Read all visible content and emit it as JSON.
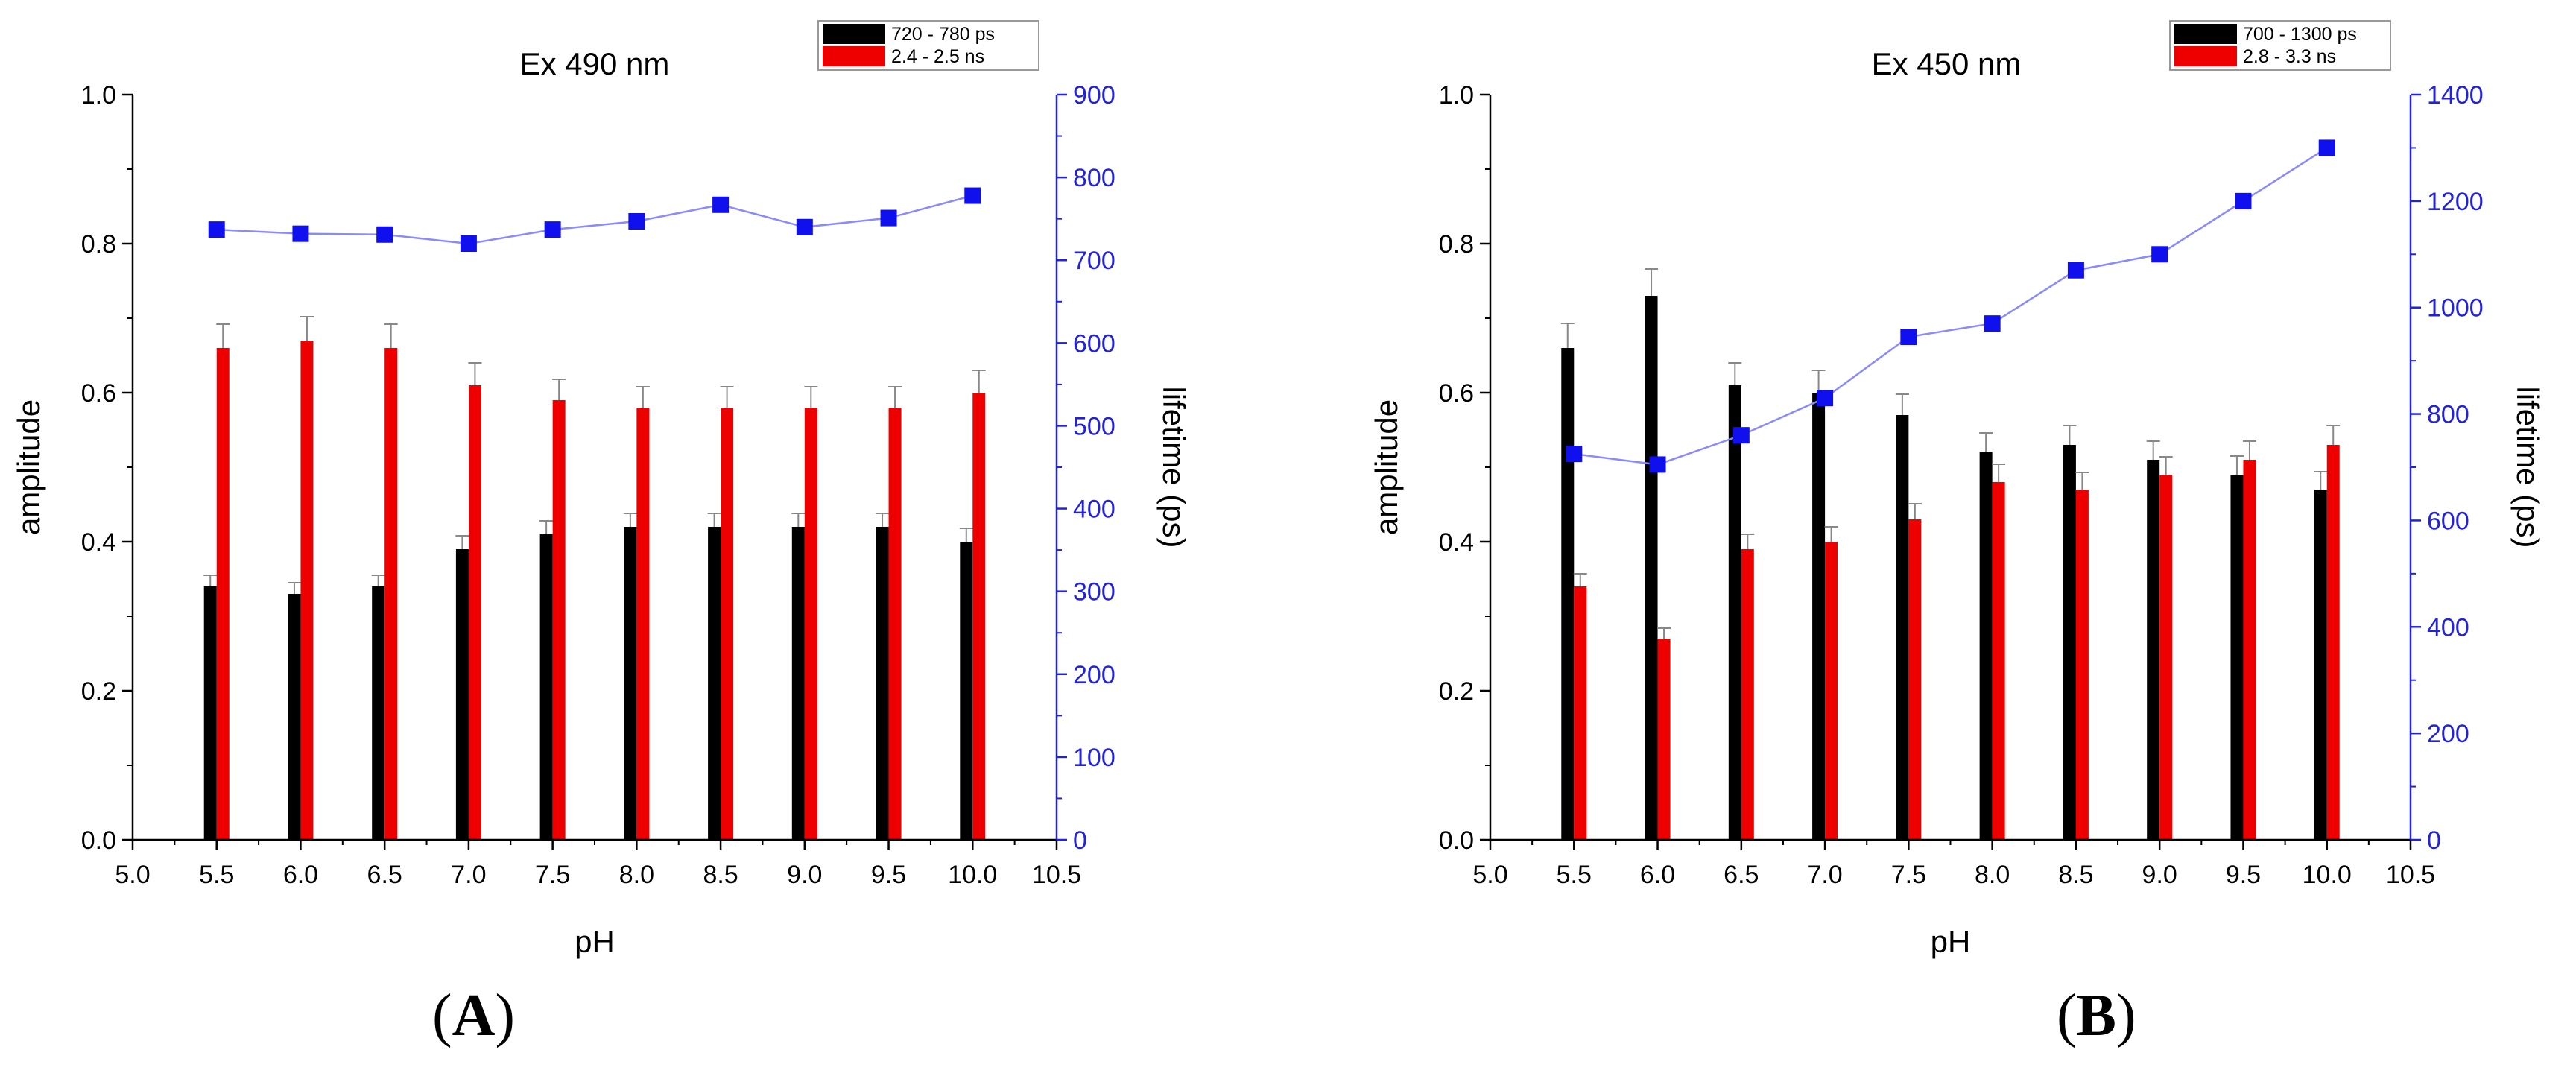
{
  "colors": {
    "short": "#000000",
    "long": "#ee0000",
    "lifetime_marker": "#1010ee",
    "lifetime_line": "#8a8aff",
    "right_axis": "#2222dd",
    "error_bar": "#888888"
  },
  "chart_data": [
    {
      "type": "bar",
      "panel_label": "A",
      "title": "Ex 490 nm",
      "xlabel": "pH",
      "ylabel": "amplitude",
      "y2label": "lifetime (ps)",
      "xlim": [
        5.0,
        10.5
      ],
      "xticks": [
        "5.0",
        "5.5",
        "6.0",
        "6.5",
        "7.0",
        "7.5",
        "8.0",
        "8.5",
        "9.0",
        "9.5",
        "10.0",
        "10.5"
      ],
      "ylim": [
        0.0,
        1.0
      ],
      "yticks": [
        "0.0",
        "0.2",
        "0.4",
        "0.6",
        "0.8",
        "1.0"
      ],
      "y2lim": [
        0,
        900
      ],
      "y2ticks": [
        "0",
        "100",
        "200",
        "300",
        "400",
        "500",
        "600",
        "700",
        "800",
        "900"
      ],
      "x": [
        5.5,
        6.0,
        6.5,
        7.0,
        7.5,
        8.0,
        8.5,
        9.0,
        9.5,
        10.0
      ],
      "series": [
        {
          "name": "720 - 780 ps",
          "key": "short",
          "values": [
            0.34,
            0.33,
            0.34,
            0.39,
            0.41,
            0.42,
            0.42,
            0.42,
            0.42,
            0.4
          ],
          "errors": [
            0.015,
            0.015,
            0.015,
            0.018,
            0.018,
            0.018,
            0.018,
            0.018,
            0.018,
            0.018
          ]
        },
        {
          "name": "2.4 - 2.5 ns",
          "key": "long",
          "values": [
            0.66,
            0.67,
            0.66,
            0.61,
            0.59,
            0.58,
            0.58,
            0.58,
            0.58,
            0.6
          ],
          "errors": [
            0.032,
            0.032,
            0.032,
            0.03,
            0.028,
            0.028,
            0.028,
            0.028,
            0.028,
            0.03
          ]
        }
      ],
      "lifetime": {
        "name": "lifetime",
        "values": [
          737,
          732,
          731,
          720,
          737,
          747,
          767,
          740,
          751,
          778
        ]
      }
    },
    {
      "type": "bar",
      "panel_label": "B",
      "title": "Ex 450 nm",
      "xlabel": "pH",
      "ylabel": "amplitude",
      "y2label": "lifetime (ps)",
      "xlim": [
        5.0,
        10.5
      ],
      "xticks": [
        "5.0",
        "5.5",
        "6.0",
        "6.5",
        "7.0",
        "7.5",
        "8.0",
        "8.5",
        "9.0",
        "9.5",
        "10.0",
        "10.5"
      ],
      "ylim": [
        0.0,
        1.0
      ],
      "yticks": [
        "0.0",
        "0.2",
        "0.4",
        "0.6",
        "0.8",
        "1.0"
      ],
      "y2lim": [
        0,
        1400
      ],
      "y2ticks": [
        "0",
        "200",
        "400",
        "600",
        "800",
        "1000",
        "1200",
        "1400"
      ],
      "x": [
        5.5,
        6.0,
        6.5,
        7.0,
        7.5,
        8.0,
        8.5,
        9.0,
        9.5,
        10.0
      ],
      "series": [
        {
          "name": "700 - 1300 ps",
          "key": "short",
          "values": [
            0.66,
            0.73,
            0.61,
            0.6,
            0.57,
            0.52,
            0.53,
            0.51,
            0.49,
            0.47
          ],
          "errors": [
            0.033,
            0.036,
            0.03,
            0.03,
            0.028,
            0.026,
            0.026,
            0.025,
            0.025,
            0.024
          ]
        },
        {
          "name": "2.8 - 3.3 ns",
          "key": "long",
          "values": [
            0.34,
            0.27,
            0.39,
            0.4,
            0.43,
            0.48,
            0.47,
            0.49,
            0.51,
            0.53
          ],
          "errors": [
            0.017,
            0.014,
            0.02,
            0.02,
            0.021,
            0.024,
            0.023,
            0.024,
            0.025,
            0.026
          ]
        }
      ],
      "lifetime": {
        "name": "lifetime",
        "values": [
          725,
          705,
          760,
          830,
          945,
          970,
          1070,
          1100,
          1200,
          1300
        ]
      }
    }
  ]
}
